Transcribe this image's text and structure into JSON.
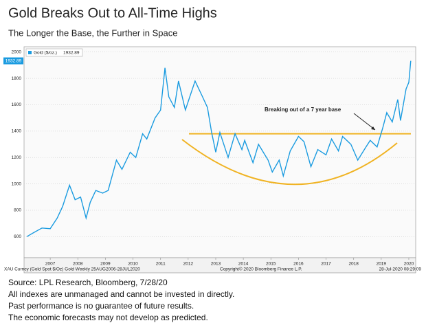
{
  "chart_data": {
    "type": "line",
    "title": "Gold Breaks Out to All-Time Highs",
    "subtitle": "The Longer the Base, the Further in Space",
    "annotation": "Breaking out of a 7 year base",
    "resistance": 1380,
    "footer_left": "XAU Curncy (Gold Spot  $/Oz) Gold  Weekly 25AUG2006-28JUL2020",
    "footer_center": "Copyright© 2020 Bloomberg Finance L.P.",
    "footer_right": "28-Jul-2020 08:29:09",
    "x": [
      2006.65,
      2006.9,
      2007.2,
      2007.5,
      2007.75,
      2007.95,
      2008.2,
      2008.4,
      2008.6,
      2008.8,
      2008.95,
      2009.15,
      2009.4,
      2009.6,
      2009.9,
      2010.1,
      2010.4,
      2010.6,
      2010.85,
      2011.0,
      2011.3,
      2011.5,
      2011.66,
      2011.8,
      2012.0,
      2012.15,
      2012.4,
      2012.75,
      2013.0,
      2013.2,
      2013.35,
      2013.5,
      2013.65,
      2013.95,
      2014.2,
      2014.45,
      2014.55,
      2014.85,
      2015.05,
      2015.4,
      2015.55,
      2015.8,
      2015.95,
      2016.2,
      2016.5,
      2016.7,
      2016.95,
      2017.2,
      2017.5,
      2017.7,
      2017.95,
      2018.1,
      2018.4,
      2018.65,
      2018.95,
      2019.1,
      2019.35,
      2019.55,
      2019.7,
      2019.9,
      2020.1,
      2020.2,
      2020.4,
      2020.5,
      2020.57
    ],
    "series": [
      {
        "name": "Gold ($/oz.)",
        "color": "#1a9be0",
        "values": [
          600,
          630,
          665,
          660,
          740,
          830,
          990,
          880,
          900,
          740,
          860,
          950,
          930,
          950,
          1180,
          1110,
          1240,
          1200,
          1380,
          1340,
          1500,
          1560,
          1880,
          1660,
          1580,
          1780,
          1560,
          1780,
          1670,
          1580,
          1390,
          1240,
          1390,
          1200,
          1380,
          1260,
          1330,
          1160,
          1300,
          1180,
          1090,
          1180,
          1060,
          1250,
          1360,
          1320,
          1130,
          1260,
          1220,
          1340,
          1250,
          1360,
          1300,
          1180,
          1280,
          1330,
          1280,
          1420,
          1540,
          1470,
          1640,
          1480,
          1720,
          1770,
          1932.89
        ]
      }
    ],
    "xlim": [
      2006.55,
      2020.75
    ],
    "xticks": [
      {
        "value": 2007.5,
        "label": "2007"
      },
      {
        "value": 2008.5,
        "label": "2008"
      },
      {
        "value": 2009.5,
        "label": "2009"
      },
      {
        "value": 2010.5,
        "label": "2010"
      },
      {
        "value": 2011.5,
        "label": "2011"
      },
      {
        "value": 2012.5,
        "label": "2012"
      },
      {
        "value": 2013.5,
        "label": "2013"
      },
      {
        "value": 2014.5,
        "label": "2014"
      },
      {
        "value": 2015.5,
        "label": "2015"
      },
      {
        "value": 2016.5,
        "label": "2016"
      },
      {
        "value": 2017.5,
        "label": "2017"
      },
      {
        "value": 2018.5,
        "label": "2018"
      },
      {
        "value": 2019.5,
        "label": "2019"
      },
      {
        "value": 2020.5,
        "label": "2020"
      }
    ],
    "ylim": [
      440,
      2040
    ],
    "yticks": [
      600,
      800,
      1000,
      1200,
      1400,
      1600,
      1800,
      2000
    ],
    "grid": true
  },
  "notes": [
    "Source: LPL Research, Bloomberg, 7/28/20",
    "All indexes are unmanaged and cannot be invested in directly.",
    "Past performance is no guarantee of future results.",
    "The economic forecasts may not develop as predicted."
  ]
}
